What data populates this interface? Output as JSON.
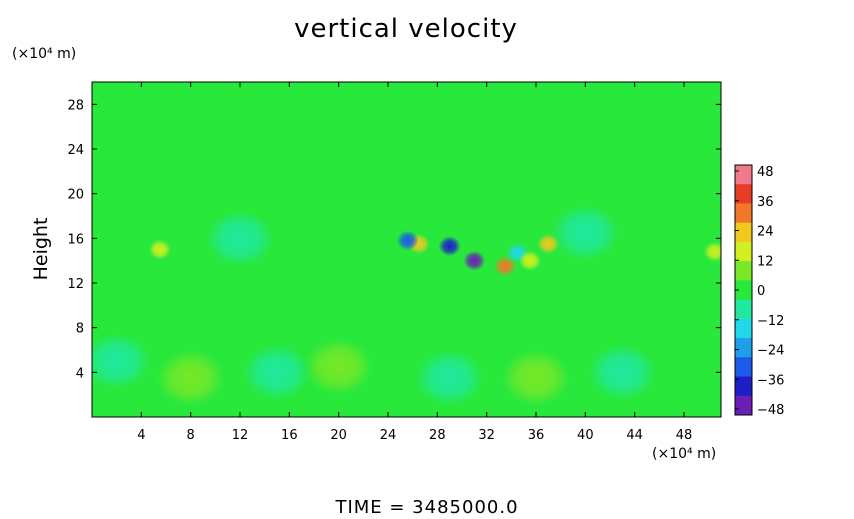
{
  "chart_data": {
    "type": "heatmap",
    "title": "vertical velocity",
    "xlabel_unit": "(×10⁴ m)",
    "ylabel_unit": "(×10⁴ m)",
    "ylabel": "Height",
    "xticks": [
      4,
      8,
      12,
      16,
      20,
      24,
      28,
      32,
      36,
      40,
      44,
      48
    ],
    "yticks": [
      4,
      8,
      12,
      16,
      20,
      24,
      28
    ],
    "xlim": [
      0,
      51
    ],
    "ylim": [
      0,
      30
    ],
    "colorbar": {
      "ticks": [
        48,
        36,
        24,
        12,
        0,
        -12,
        -24,
        -36,
        -48
      ],
      "range": [
        -48,
        48
      ],
      "colors": [
        "#f07a8a",
        "#e83c28",
        "#f07828",
        "#f0c820",
        "#d2f020",
        "#78e828",
        "#28e83c",
        "#20e8a0",
        "#20d8e8",
        "#1ea0e8",
        "#1e5ae8",
        "#1e1ec8",
        "#6a1eb4"
      ]
    },
    "background_value": 2,
    "blobs": [
      {
        "x": 5.5,
        "y": 15,
        "value": 20
      },
      {
        "x": 26.5,
        "y": 15.5,
        "value": 24
      },
      {
        "x": 25.6,
        "y": 15.8,
        "value": -30
      },
      {
        "x": 29.0,
        "y": 15.3,
        "value": -36
      },
      {
        "x": 31.0,
        "y": 14.0,
        "value": -44
      },
      {
        "x": 33.5,
        "y": 13.5,
        "value": 30
      },
      {
        "x": 34.5,
        "y": 14.7,
        "value": -18
      },
      {
        "x": 37.0,
        "y": 15.5,
        "value": 22
      },
      {
        "x": 35.5,
        "y": 14.0,
        "value": 14
      },
      {
        "x": 50.5,
        "y": 14.8,
        "value": 16
      },
      {
        "x": 8.0,
        "y": 3.5,
        "value": 10
      },
      {
        "x": 20.0,
        "y": 4.5,
        "value": 10
      },
      {
        "x": 36.0,
        "y": 3.5,
        "value": 10
      },
      {
        "x": 15.0,
        "y": 4.0,
        "value": -8
      },
      {
        "x": 29.0,
        "y": 3.5,
        "value": -8
      },
      {
        "x": 43.0,
        "y": 4.0,
        "value": -8
      },
      {
        "x": 2.0,
        "y": 5.0,
        "value": -6
      },
      {
        "x": 12.0,
        "y": 16.0,
        "value": -6
      },
      {
        "x": 40.0,
        "y": 16.5,
        "value": -6
      }
    ]
  },
  "time_label": "TIME  =  3485000.0"
}
